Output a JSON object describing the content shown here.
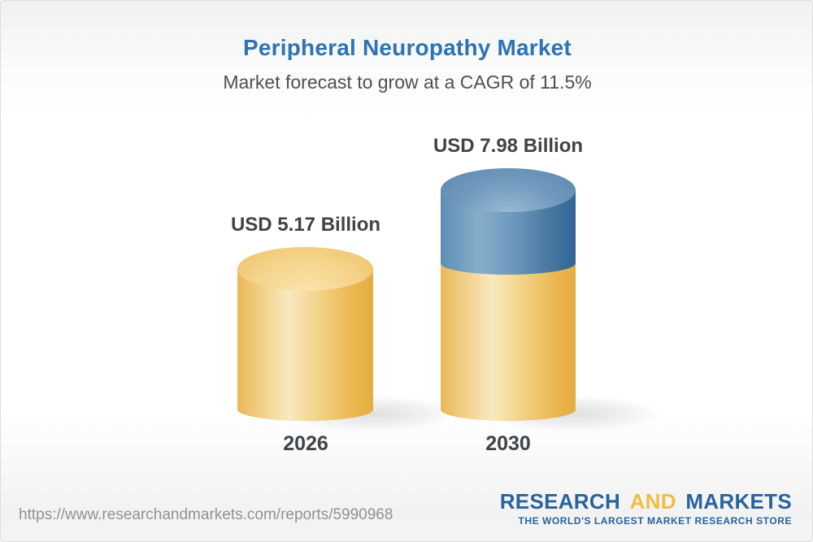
{
  "chart_data": {
    "type": "bar",
    "title": "Peripheral Neuropathy Market",
    "subtitle": "Market forecast to grow at a CAGR of 11.5%",
    "cagr_percent": 11.5,
    "unit": "USD Billion",
    "categories": [
      "2026",
      "2030"
    ],
    "values": [
      5.17,
      7.98
    ],
    "bars": [
      {
        "category": "2026",
        "value": 5.17,
        "value_label": "USD 5.17 Billion",
        "segments": [
          {
            "name": "market-2026",
            "value": 5.17,
            "color": "#f2c569"
          }
        ]
      },
      {
        "category": "2030",
        "value": 7.98,
        "value_label": "USD 7.98 Billion",
        "segments": [
          {
            "name": "market-2026-base",
            "value": 5.17,
            "color": "#f2c569"
          },
          {
            "name": "growth-to-2030",
            "value": 2.81,
            "color": "#6f9abf"
          }
        ]
      }
    ],
    "legend": "none",
    "grid": false,
    "bar_style": "3d-cylinder"
  },
  "footer": {
    "url": "https://www.researchandmarkets.com/reports/5990968",
    "logo": {
      "research": "RESEARCH",
      "and": "AND",
      "markets": "MARKETS",
      "tagline": "THE WORLD'S LARGEST MARKET RESEARCH STORE"
    }
  },
  "colors": {
    "title_blue": "#2e74b1",
    "text_dark": "#3f4449",
    "subtitle_gray": "#4a5158",
    "url_gray": "#8f9294",
    "bar_yellow_light": "#f9e8c0",
    "bar_yellow_dark": "#e6ad40",
    "bar_blue_light": "#87adca",
    "bar_blue_dark": "#2f6697",
    "logo_blue": "#28639e",
    "logo_yellow": "#f3bb45",
    "background_edge": "#f1f1f2"
  }
}
